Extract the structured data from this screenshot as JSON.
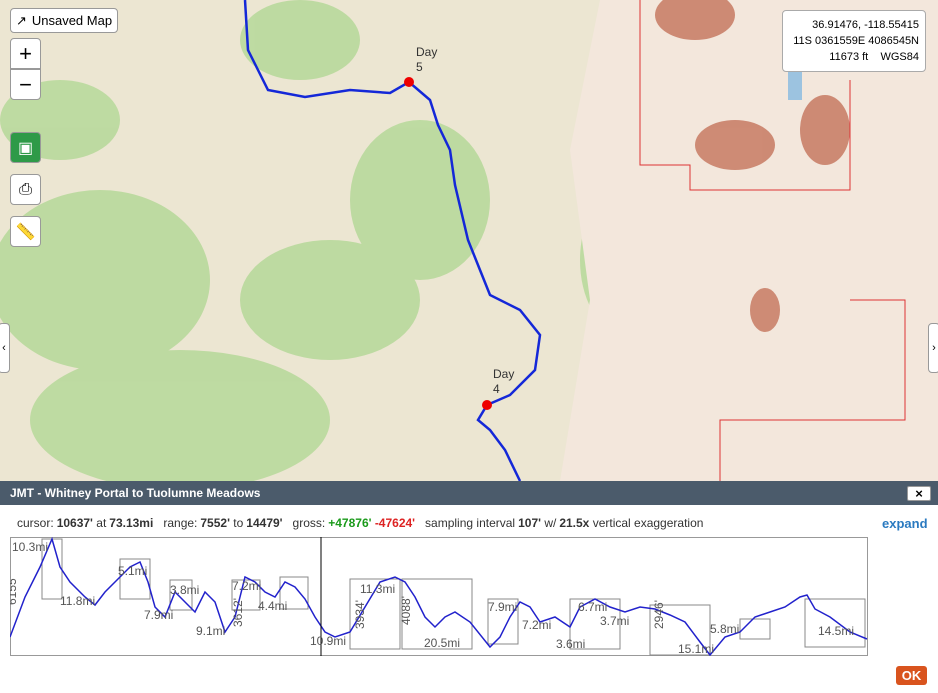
{
  "map": {
    "button": "Unsaved Map",
    "coordinates": {
      "latlon": "36.91476, -118.55415",
      "utm": "11S 0361559E 4086545N",
      "elevation": "11673 ft",
      "datum": "WGS84"
    },
    "markers": [
      {
        "label": "Day",
        "number": "5"
      },
      {
        "label": "Day",
        "number": "4"
      }
    ]
  },
  "profile": {
    "title": "JMT - Whitney Portal to Tuolumne Meadows",
    "close": "×",
    "stats": {
      "cursor_label": "cursor:",
      "cursor_elevation": "10637'",
      "at": "at",
      "cursor_distance": "73.13mi",
      "range_label": "range:",
      "range_min": "7552'",
      "to": "to",
      "range_max": "14479'",
      "gross_label": "gross:",
      "gain": "+47876'",
      "loss": "-47624'",
      "interval_label": "sampling interval",
      "interval": "107'",
      "with": "w/",
      "exaggeration": "21.5x",
      "exaggeration_label": "vertical exaggeration"
    },
    "expand": "expand",
    "segment_labels": [
      "10.3mi",
      "6155'",
      "11.8mi",
      "5.1mi",
      "7.9mi",
      "3.8mi",
      "9.1mi",
      "7.2mi",
      "3612'",
      "4.4mi",
      "10.9mi",
      "3934'",
      "11.3mi",
      "4088'",
      "20.5mi",
      "7.9mi",
      "7.2mi",
      "3.6mi",
      "6.7mi",
      "3.7mi",
      "2946'",
      "15.1mi",
      "5.8mi",
      "14.5mi"
    ],
    "ok": "OK"
  }
}
